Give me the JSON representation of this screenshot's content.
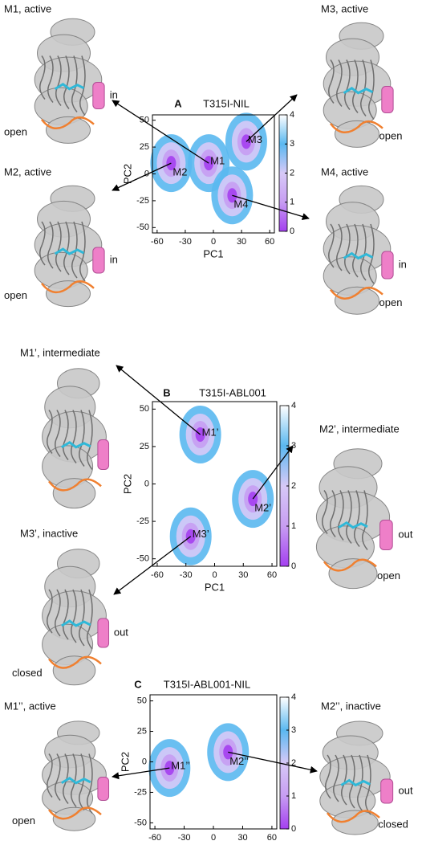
{
  "chart_data": [
    {
      "type": "density",
      "panel": "A",
      "title": "T315I-NIL",
      "xlabel": "PC1",
      "ylabel": "PC2",
      "xlim": [
        -65,
        65
      ],
      "ylim": [
        -55,
        55
      ],
      "xticks": [
        -60,
        -30,
        0,
        30,
        60
      ],
      "yticks": [
        -50,
        -25,
        0,
        25,
        50
      ],
      "colorbar": {
        "lim": [
          0,
          4
        ],
        "ticks": [
          0,
          1,
          2,
          3,
          4
        ],
        "colors": [
          "#a43ff0",
          "#c79df2",
          "#d7c9f7",
          "#5ab8f0",
          "#ffffff"
        ]
      },
      "clusters": [
        {
          "label": "M1",
          "x": -5,
          "y": 10
        },
        {
          "label": "M2",
          "x": -45,
          "y": 10
        },
        {
          "label": "M3",
          "x": 35,
          "y": 30
        },
        {
          "label": "M4",
          "x": 20,
          "y": -20
        }
      ],
      "structures": [
        {
          "title": "M1, active",
          "helix_label": "in",
          "loop_label": "open"
        },
        {
          "title": "M2, active",
          "helix_label": "in",
          "loop_label": "open"
        },
        {
          "title": "M3,  active",
          "loop_label": "open"
        },
        {
          "title": "M4, active",
          "helix_label": "in",
          "loop_label": "open"
        }
      ]
    },
    {
      "type": "density",
      "panel": "B",
      "title": "T315I-ABL001",
      "xlabel": "PC1",
      "ylabel": "PC2",
      "xlim": [
        -65,
        65
      ],
      "ylim": [
        -55,
        55
      ],
      "xticks": [
        -60,
        -30,
        0,
        30,
        60
      ],
      "yticks": [
        -50,
        -25,
        0,
        25,
        50
      ],
      "colorbar": {
        "lim": [
          0,
          4
        ],
        "ticks": [
          0,
          1,
          2,
          3,
          4
        ],
        "colors": [
          "#a43ff0",
          "#c79df2",
          "#d7c9f7",
          "#5ab8f0",
          "#ffffff"
        ]
      },
      "clusters": [
        {
          "label": "M1’",
          "x": -15,
          "y": 33
        },
        {
          "label": "M2’",
          "x": 40,
          "y": -10
        },
        {
          "label": "M3’",
          "x": -25,
          "y": -35
        }
      ],
      "structures": [
        {
          "title": "M1’, intermediate"
        },
        {
          "title": "M2’, intermediate",
          "helix_label": "out",
          "loop_label": "open"
        },
        {
          "title": "M3’, inactive",
          "helix_label": "out",
          "loop_label": "closed"
        }
      ]
    },
    {
      "type": "density",
      "panel": "C",
      "title": "T315I-ABL001-NIL",
      "xlabel": "PC1",
      "ylabel": "PC2",
      "xlim": [
        -65,
        65
      ],
      "ylim": [
        -55,
        55
      ],
      "xticks": [
        -60,
        -30,
        0,
        30,
        60
      ],
      "yticks": [
        -50,
        -25,
        0,
        25,
        50
      ],
      "colorbar": {
        "lim": [
          0,
          4
        ],
        "ticks": [
          0,
          1,
          2,
          3,
          4
        ],
        "colors": [
          "#a43ff0",
          "#c79df2",
          "#d7c9f7",
          "#5ab8f0",
          "#ffffff"
        ]
      },
      "clusters": [
        {
          "label": "M1’’",
          "x": -45,
          "y": -5
        },
        {
          "label": "M2’’",
          "x": 15,
          "y": 8
        }
      ],
      "structures": [
        {
          "title": "M1’’, active",
          "loop_label": "open"
        },
        {
          "title": "M2’’, inactive",
          "helix_label": "out",
          "loop_label": "closed"
        }
      ]
    }
  ]
}
